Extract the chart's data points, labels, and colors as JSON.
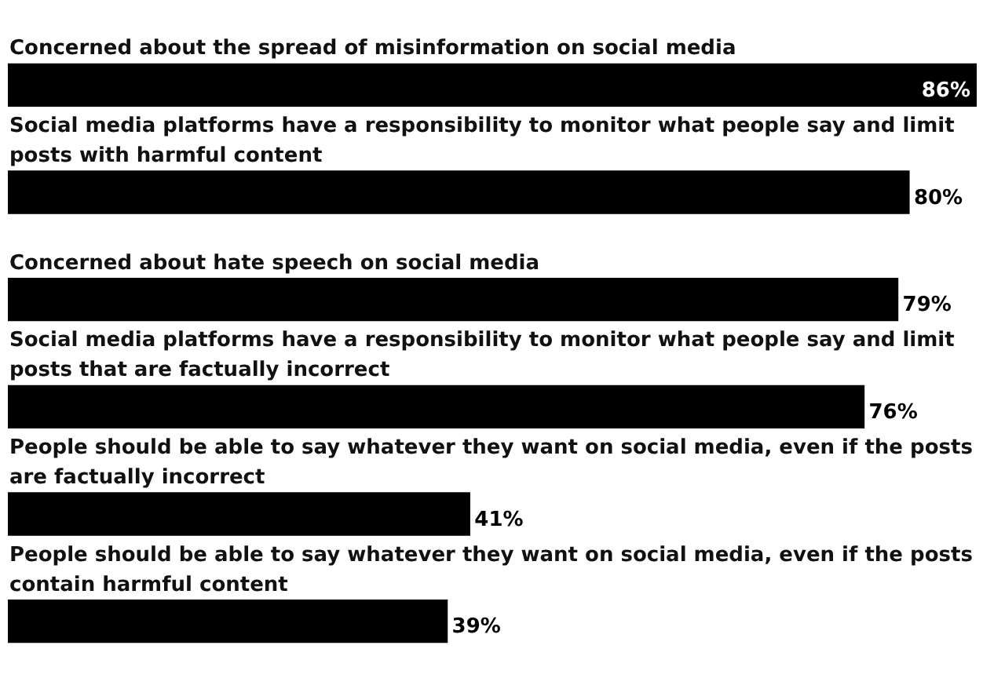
{
  "chart_data": {
    "type": "bar",
    "orientation": "horizontal",
    "categories": [
      "Concerned about the spread of misinformation on social media",
      "Social media platforms have a responsibility to monitor what people say and limit posts with harmful content",
      "Concerned about hate speech on social media",
      "Social media platforms have a responsibility to monitor what people say and limit posts that are factually incorrect",
      "People should be able to say whatever they want on social media, even if the posts are factually incorrect",
      "People should be able to say whatever they want on social media, even if the posts contain harmful content"
    ],
    "values": [
      86,
      80,
      79,
      76,
      41,
      39
    ],
    "value_labels": [
      "86%",
      "80%",
      "79%",
      "76%",
      "41%",
      "39%"
    ],
    "color": "#000000",
    "xlim": [
      0,
      86
    ],
    "tick_labels": false,
    "legend": false
  }
}
